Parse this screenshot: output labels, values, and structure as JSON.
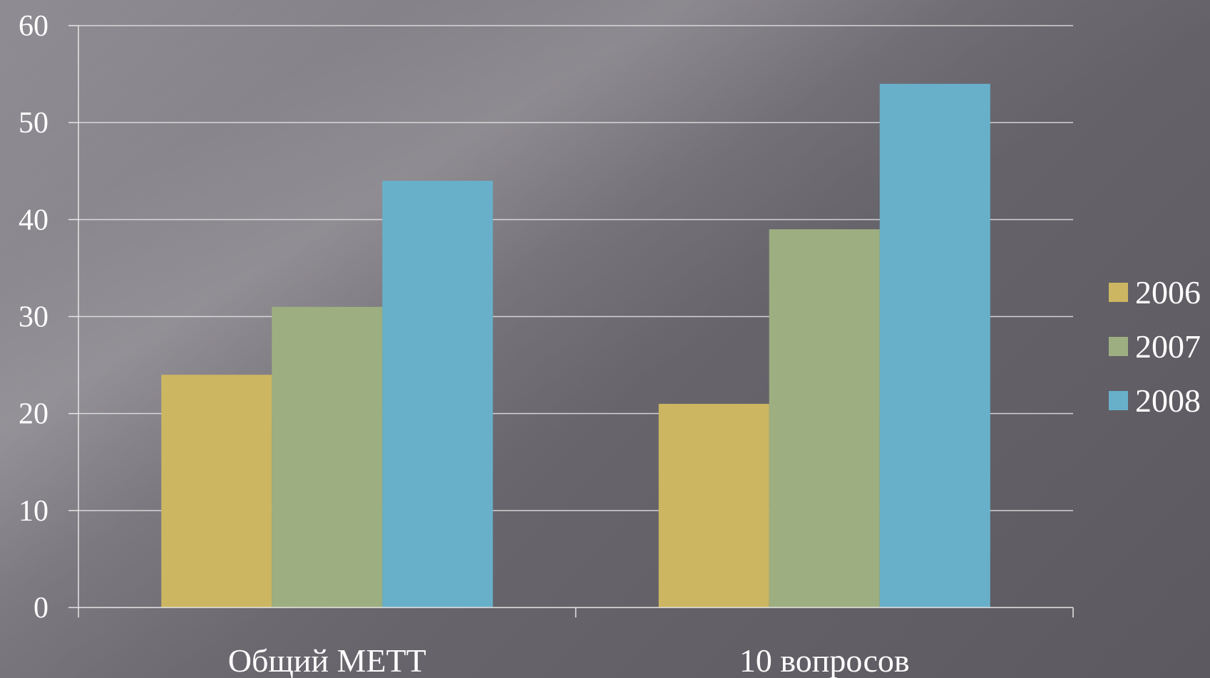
{
  "chart_data": {
    "type": "bar",
    "categories": [
      "Общий МЕТТ",
      "10 вопросов"
    ],
    "series": [
      {
        "name": "2006",
        "values": [
          24,
          21
        ],
        "color": "#cdb662"
      },
      {
        "name": "2007",
        "values": [
          31,
          39
        ],
        "color": "#9daf80"
      },
      {
        "name": "2008",
        "values": [
          44,
          54
        ],
        "color": "#68b0ca"
      }
    ],
    "ylim": [
      0,
      60
    ],
    "yticks": [
      0,
      10,
      20,
      30,
      40,
      50,
      60
    ],
    "grid": true,
    "legend_position": "right",
    "title": "",
    "xlabel": "",
    "ylabel": ""
  }
}
